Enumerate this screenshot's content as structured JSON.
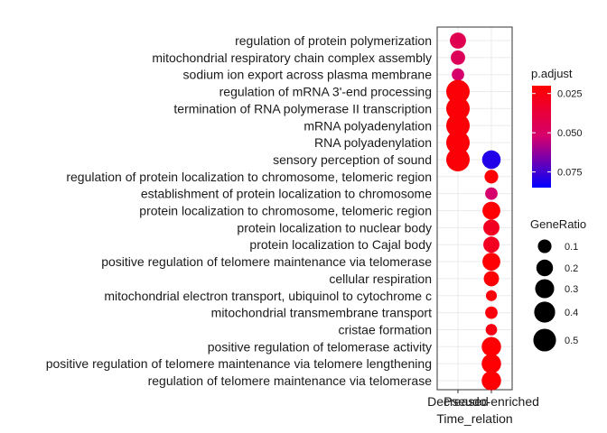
{
  "chart_data": {
    "type": "scatter",
    "xlabel": "Time_relation",
    "ylabel": "",
    "categories_x": [
      "Decreased",
      "Pseudo-enriched"
    ],
    "terms": [
      "regulation of protein polymerization",
      "mitochondrial respiratory chain complex assembly",
      "sodium ion export across plasma membrane",
      "regulation of mRNA 3'-end processing",
      "termination of RNA polymerase II transcription",
      "mRNA polyadenylation",
      "RNA polyadenylation",
      "sensory perception of sound",
      "regulation of protein localization to chromosome, telomeric region",
      "establishment of protein localization to chromosome",
      "protein localization to chromosome, telomeric region",
      "protein localization to nuclear body",
      "protein localization to Cajal body",
      "positive regulation of telomere maintenance via telomerase",
      "cellular respiration",
      "mitochondrial electron transport, ubiquinol to cytochrome c",
      "mitochondrial transmembrane transport",
      "cristae formation",
      "positive regulation of telomerase activity",
      "positive regulation of telomere maintenance via telomere lengthening",
      "regulation of telomere maintenance via telomerase"
    ],
    "points": [
      {
        "term": "regulation of protein polymerization",
        "group": "Decreased",
        "gene_ratio": 0.18,
        "p_adjust": 0.044
      },
      {
        "term": "mitochondrial respiratory chain complex assembly",
        "group": "Decreased",
        "gene_ratio": 0.12,
        "p_adjust": 0.046
      },
      {
        "term": "sodium ion export across plasma membrane",
        "group": "Decreased",
        "gene_ratio": 0.07,
        "p_adjust": 0.052
      },
      {
        "term": "regulation of mRNA 3'-end processing",
        "group": "Decreased",
        "gene_ratio": 0.55,
        "p_adjust": 0.022
      },
      {
        "term": "termination of RNA polymerase II transcription",
        "group": "Decreased",
        "gene_ratio": 0.55,
        "p_adjust": 0.022
      },
      {
        "term": "mRNA polyadenylation",
        "group": "Decreased",
        "gene_ratio": 0.55,
        "p_adjust": 0.022
      },
      {
        "term": "RNA polyadenylation",
        "group": "Decreased",
        "gene_ratio": 0.55,
        "p_adjust": 0.022
      },
      {
        "term": "sensory perception of sound",
        "group": "Decreased",
        "gene_ratio": 0.55,
        "p_adjust": 0.022
      },
      {
        "term": "sensory perception of sound",
        "group": "Pseudo-enriched",
        "gene_ratio": 0.28,
        "p_adjust": 0.08
      },
      {
        "term": "regulation of protein localization to chromosome, telomeric region",
        "group": "Pseudo-enriched",
        "gene_ratio": 0.1,
        "p_adjust": 0.021
      },
      {
        "term": "establishment of protein localization to chromosome",
        "group": "Pseudo-enriched",
        "gene_ratio": 0.07,
        "p_adjust": 0.052
      },
      {
        "term": "protein localization to chromosome, telomeric region",
        "group": "Pseudo-enriched",
        "gene_ratio": 0.25,
        "p_adjust": 0.021
      },
      {
        "term": "protein localization to nuclear body",
        "group": "Pseudo-enriched",
        "gene_ratio": 0.18,
        "p_adjust": 0.03
      },
      {
        "term": "protein localization to Cajal body",
        "group": "Pseudo-enriched",
        "gene_ratio": 0.18,
        "p_adjust": 0.03
      },
      {
        "term": "positive regulation of telomere maintenance via telomerase",
        "group": "Pseudo-enriched",
        "gene_ratio": 0.25,
        "p_adjust": 0.021
      },
      {
        "term": "cellular respiration",
        "group": "Pseudo-enriched",
        "gene_ratio": 0.15,
        "p_adjust": 0.021
      },
      {
        "term": "mitochondrial electron transport, ubiquinol to cytochrome c",
        "group": "Pseudo-enriched",
        "gene_ratio": 0.04,
        "p_adjust": 0.023
      },
      {
        "term": "mitochondrial transmembrane transport",
        "group": "Pseudo-enriched",
        "gene_ratio": 0.07,
        "p_adjust": 0.023
      },
      {
        "term": "cristae formation",
        "group": "Pseudo-enriched",
        "gene_ratio": 0.05,
        "p_adjust": 0.026
      },
      {
        "term": "positive regulation of telomerase activity",
        "group": "Pseudo-enriched",
        "gene_ratio": 0.32,
        "p_adjust": 0.021
      },
      {
        "term": "positive regulation of telomere maintenance via telomere lengthening",
        "group": "Pseudo-enriched",
        "gene_ratio": 0.32,
        "p_adjust": 0.021
      },
      {
        "term": "regulation of telomere maintenance via telomerase",
        "group": "Pseudo-enriched",
        "gene_ratio": 0.32,
        "p_adjust": 0.021
      }
    ],
    "color_legend": {
      "title": "p.adjust",
      "ticks": [
        0.025,
        0.05,
        0.075
      ],
      "tick_labels": [
        "0.025",
        "0.050",
        "0.075"
      ],
      "range": [
        0.02,
        0.085
      ],
      "low_color": "#ff0000",
      "high_color": "#0000ff"
    },
    "size_legend": {
      "title": "GeneRatio",
      "values": [
        0.1,
        0.2,
        0.3,
        0.4,
        0.5
      ],
      "labels": [
        "0.1",
        "0.2",
        "0.3",
        "0.4",
        "0.5"
      ]
    },
    "grid": true,
    "legend_position": "right"
  }
}
